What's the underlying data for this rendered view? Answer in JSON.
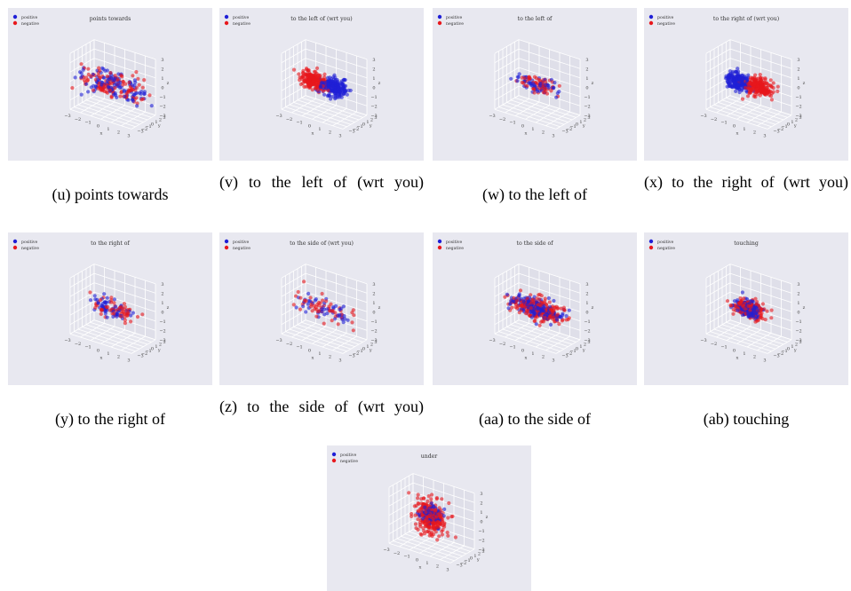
{
  "legend": {
    "positive": "positive",
    "negative": "negative"
  },
  "colors": {
    "positive": "#1f1fd6",
    "negative": "#e8181d",
    "background": "#e8e8f0",
    "grid": "#ffffff",
    "pane": "#dfdfe9"
  },
  "x_tick_labels": [
    "−3",
    "−2",
    "−1",
    "0",
    "1",
    "2",
    "3"
  ],
  "y_tick_labels": [
    "−3",
    "−2",
    "−1",
    "0",
    "1",
    "2",
    "3"
  ],
  "z_tick_labels": [
    "−3",
    "−2",
    "−1",
    "0",
    "1",
    "2",
    "3"
  ],
  "axis_letters": {
    "x": "x",
    "y": "y",
    "z": "z"
  },
  "chart_data": [
    {
      "id": "u",
      "type": "scatter",
      "title": "points towards",
      "caption": "(u) points towards",
      "xlim": [
        -3,
        3
      ],
      "ylim": [
        -3,
        3
      ],
      "zlim": [
        -3,
        3
      ],
      "legend_position": "top-left",
      "grid": true,
      "series": [
        {
          "name": "positive",
          "cluster": {
            "center": [
              0,
              0,
              0
            ],
            "spread": [
              1.6,
              1.6,
              0.5
            ],
            "count": 120
          }
        },
        {
          "name": "negative",
          "cluster": {
            "center": [
              0,
              0,
              0
            ],
            "spread": [
              1.6,
              1.6,
              0.5
            ],
            "count": 120
          }
        }
      ]
    },
    {
      "id": "v",
      "type": "scatter",
      "title": "to the left of (wrt you)",
      "caption": "(v) to the left of (wrt you)",
      "xlim": [
        -3,
        3
      ],
      "ylim": [
        -3,
        3
      ],
      "zlim": [
        -3,
        3
      ],
      "legend_position": "top-left",
      "grid": true,
      "series": [
        {
          "name": "positive",
          "cluster": {
            "center": [
              1.0,
              0,
              0
            ],
            "spread": [
              0.6,
              0.5,
              0.45
            ],
            "count": 220
          }
        },
        {
          "name": "negative",
          "cluster": {
            "center": [
              -1.0,
              0,
              0
            ],
            "spread": [
              0.6,
              0.5,
              0.45
            ],
            "count": 220
          }
        }
      ]
    },
    {
      "id": "w",
      "type": "scatter",
      "title": "to the left of",
      "caption": "(w) to the left of",
      "xlim": [
        -3,
        3
      ],
      "ylim": [
        -3,
        3
      ],
      "zlim": [
        -3,
        3
      ],
      "legend_position": "top-left",
      "grid": true,
      "series": [
        {
          "name": "positive",
          "cluster": {
            "center": [
              0,
              0,
              0
            ],
            "spread": [
              1.0,
              0.6,
              0.4
            ],
            "count": 60
          }
        },
        {
          "name": "negative",
          "cluster": {
            "center": [
              0.2,
              0,
              0
            ],
            "spread": [
              1.0,
              0.6,
              0.4
            ],
            "count": 60
          }
        }
      ]
    },
    {
      "id": "x",
      "type": "scatter",
      "title": "to the right of (wrt you)",
      "caption": "(x) to the right of (wrt you)",
      "xlim": [
        -3,
        3
      ],
      "ylim": [
        -3,
        3
      ],
      "zlim": [
        -3,
        3
      ],
      "legend_position": "top-left",
      "grid": true,
      "series": [
        {
          "name": "positive",
          "cluster": {
            "center": [
              -1.0,
              0,
              0
            ],
            "spread": [
              0.6,
              0.5,
              0.45
            ],
            "count": 220
          }
        },
        {
          "name": "negative",
          "cluster": {
            "center": [
              1.0,
              0,
              0
            ],
            "spread": [
              0.6,
              0.5,
              0.45
            ],
            "count": 220
          }
        }
      ]
    },
    {
      "id": "y",
      "type": "scatter",
      "title": "to the right of",
      "caption": "(y) to the right of",
      "xlim": [
        -3,
        3
      ],
      "ylim": [
        -3,
        3
      ],
      "zlim": [
        -3,
        3
      ],
      "legend_position": "top-left",
      "grid": true,
      "series": [
        {
          "name": "positive",
          "cluster": {
            "center": [
              -0.2,
              0,
              0
            ],
            "spread": [
              1.0,
              0.6,
              0.4
            ],
            "count": 60
          }
        },
        {
          "name": "negative",
          "cluster": {
            "center": [
              0.2,
              0,
              0
            ],
            "spread": [
              1.0,
              0.6,
              0.4
            ],
            "count": 60
          }
        }
      ]
    },
    {
      "id": "z",
      "type": "scatter",
      "title": "to the side of (wrt you)",
      "caption": "(z) to the side of (wrt you)",
      "xlim": [
        -3,
        3
      ],
      "ylim": [
        -3,
        3
      ],
      "zlim": [
        -3,
        3
      ],
      "legend_position": "top-left",
      "grid": true,
      "series": [
        {
          "name": "positive",
          "cluster": {
            "center": [
              0,
              0,
              0
            ],
            "spread": [
              1.6,
              0.6,
              0.5
            ],
            "count": 45
          }
        },
        {
          "name": "negative",
          "cluster": {
            "center": [
              0,
              0,
              0
            ],
            "spread": [
              1.8,
              0.7,
              0.6
            ],
            "count": 55
          }
        }
      ]
    },
    {
      "id": "aa",
      "type": "scatter",
      "title": "to the side of",
      "caption": "(aa) to the side of",
      "xlim": [
        -3,
        3
      ],
      "ylim": [
        -3,
        3
      ],
      "zlim": [
        -3,
        3
      ],
      "legend_position": "top-left",
      "grid": true,
      "series": [
        {
          "name": "positive",
          "cluster": {
            "center": [
              0,
              0,
              0
            ],
            "spread": [
              1.2,
              0.7,
              0.45
            ],
            "count": 200
          }
        },
        {
          "name": "negative",
          "cluster": {
            "center": [
              0,
              0,
              0
            ],
            "spread": [
              1.3,
              0.7,
              0.5
            ],
            "count": 240
          }
        }
      ]
    },
    {
      "id": "ab",
      "type": "scatter",
      "title": "touching",
      "caption": "(ab) touching",
      "xlim": [
        -3,
        3
      ],
      "ylim": [
        -3,
        3
      ],
      "zlim": [
        -3,
        3
      ],
      "legend_position": "top-left",
      "grid": true,
      "series": [
        {
          "name": "positive",
          "cluster": {
            "center": [
              0,
              0,
              0
            ],
            "spread": [
              0.6,
              0.5,
              0.4
            ],
            "count": 160
          }
        },
        {
          "name": "negative",
          "cluster": {
            "center": [
              0,
              0,
              0
            ],
            "spread": [
              0.7,
              0.55,
              0.45
            ],
            "count": 160
          }
        }
      ]
    },
    {
      "id": "under",
      "type": "scatter",
      "title": "under",
      "caption": "",
      "xlim": [
        -3,
        3
      ],
      "ylim": [
        -3,
        3
      ],
      "zlim": [
        -3,
        3
      ],
      "legend_position": "top-left",
      "grid": true,
      "series": [
        {
          "name": "positive",
          "cluster": {
            "center": [
              0,
              0,
              0.4
            ],
            "spread": [
              0.5,
              0.5,
              0.5
            ],
            "count": 80
          }
        },
        {
          "name": "negative",
          "cluster": {
            "center": [
              0,
              0,
              0
            ],
            "spread": [
              0.7,
              0.6,
              0.9
            ],
            "count": 260
          }
        }
      ]
    }
  ]
}
